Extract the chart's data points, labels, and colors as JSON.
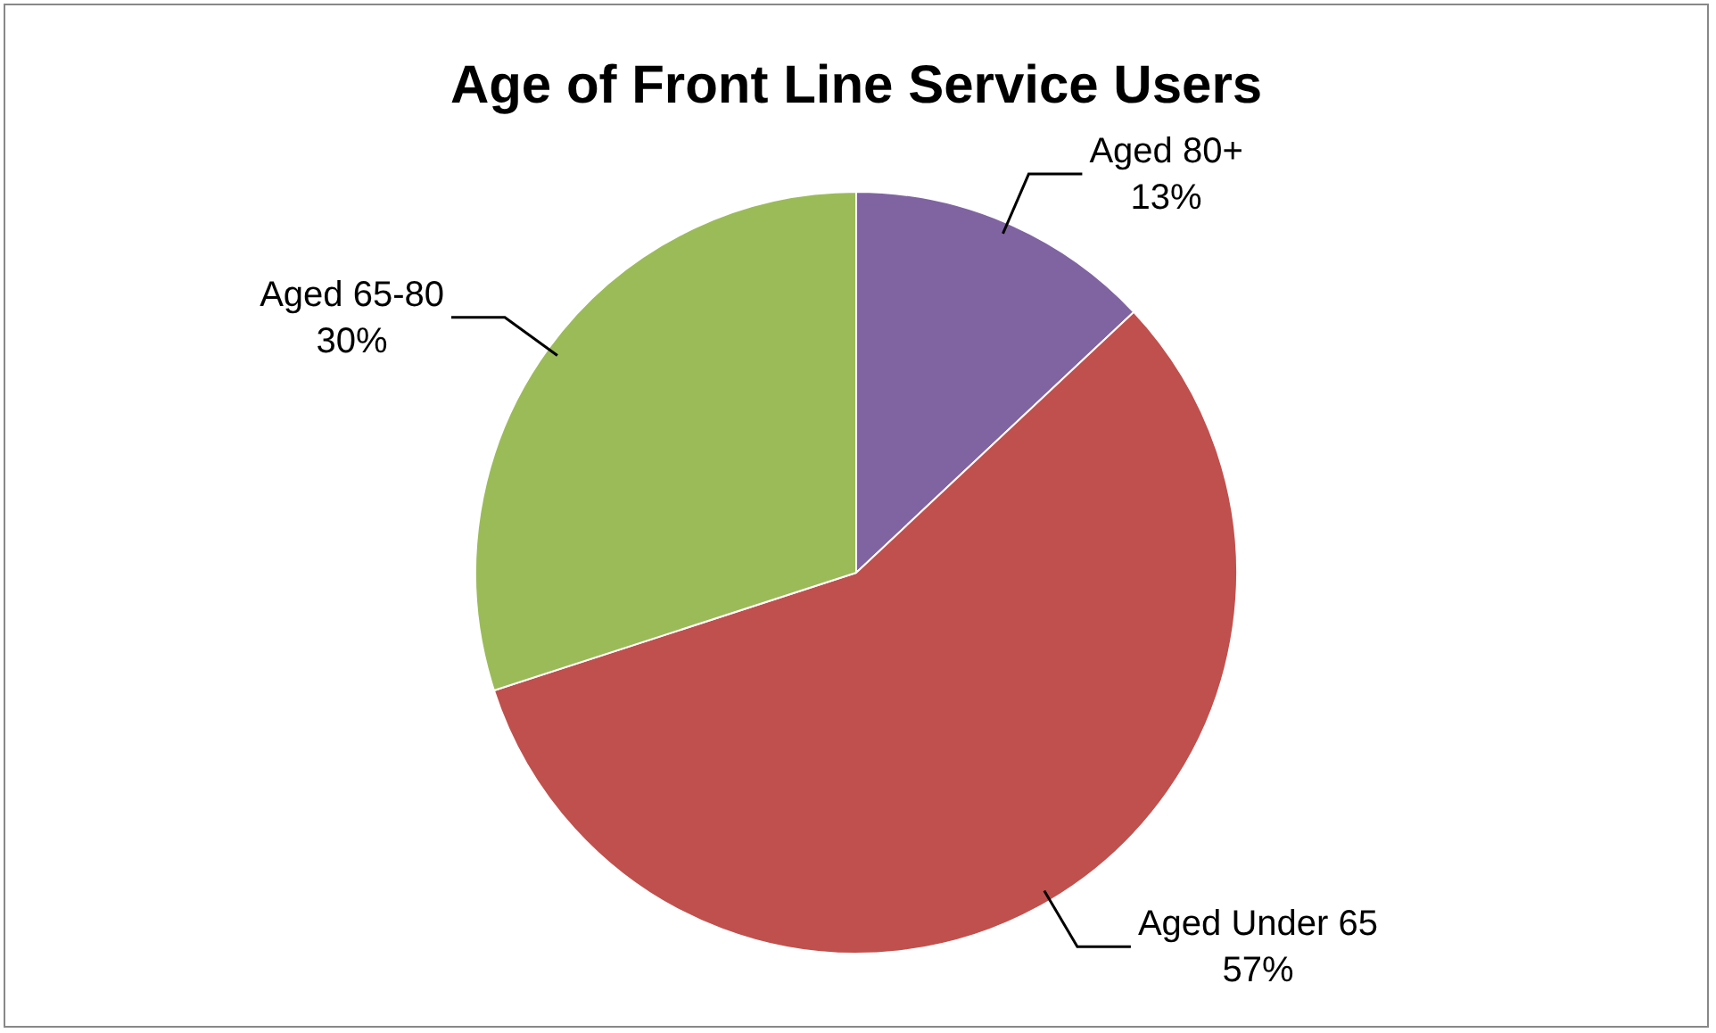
{
  "chart_data": {
    "type": "pie",
    "title": "Age of Front Line Service Users",
    "categories": [
      "Aged 80+",
      "Aged Under 65",
      "Aged 65-80"
    ],
    "values": [
      13,
      57,
      30
    ],
    "colors": [
      "#8064a2",
      "#c0504d",
      "#9bbb59"
    ],
    "value_labels": [
      "13%",
      "57%",
      "30%"
    ],
    "legend": false
  }
}
